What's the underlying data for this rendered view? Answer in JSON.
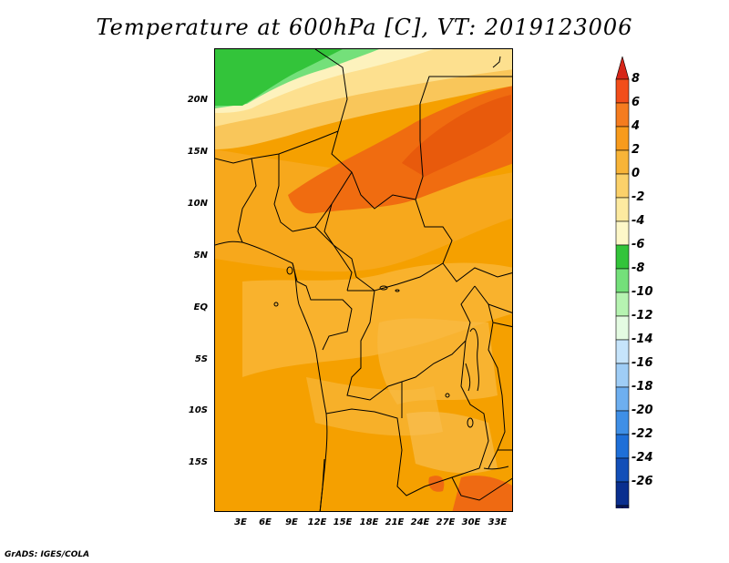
{
  "title": "Temperature at 600hPa [C], VT: 2019123006",
  "credit": "GrADS: IGES/COLA",
  "lat_labels": [
    "20N",
    "15N",
    "10N",
    "5N",
    "EQ",
    "5S",
    "10S",
    "15S"
  ],
  "lon_labels": [
    "3E",
    "6E",
    "9E",
    "12E",
    "15E",
    "18E",
    "21E",
    "24E",
    "27E",
    "30E",
    "33E"
  ],
  "colorbar": {
    "labels": [
      "8",
      "6",
      "4",
      "2",
      "0",
      "-2",
      "-4",
      "-6",
      "-8",
      "-10",
      "-12",
      "-14",
      "-16",
      "-18",
      "-20",
      "-22",
      "-24",
      "-26"
    ],
    "colors": [
      "#d62518",
      "#f24e1a",
      "#f57c1f",
      "#f89b1c",
      "#f8b438",
      "#fbd16a",
      "#fdeaa0",
      "#fdf7c8",
      "#33c43a",
      "#74e07a",
      "#b6f3b1",
      "#e4fbe2",
      "#c6e4fb",
      "#9fcdf6",
      "#6eaff0",
      "#3f8fe6",
      "#1e6fd8",
      "#134fb8",
      "#0a2f8f",
      "#081a5e",
      "#e6e0f7"
    ]
  }
}
